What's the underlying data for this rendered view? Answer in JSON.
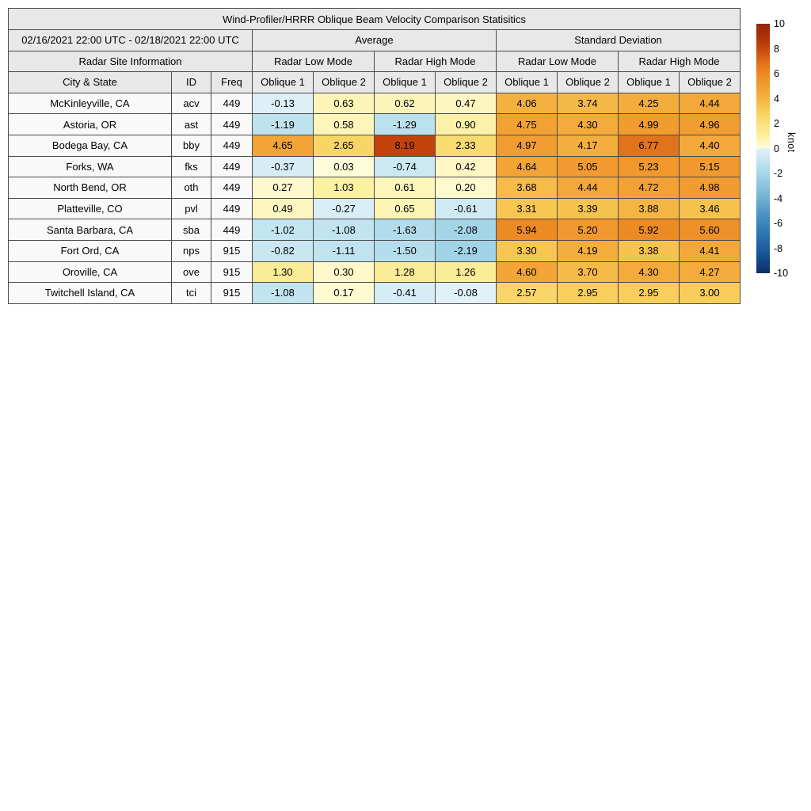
{
  "title": "Wind-Profiler/HRRR Oblique Beam Velocity Comparison Statisitics",
  "header": {
    "date_range": "02/16/2021 22:00 UTC - 02/18/2021 22:00 UTC",
    "average": "Average",
    "standard_deviation": "Standard Deviation",
    "radar_site_info": "Radar Site Information",
    "low_mode": "Radar Low Mode",
    "high_mode": "Radar High Mode",
    "city_state": "City & State",
    "id": "ID",
    "freq": "Freq",
    "oblique1": "Oblique 1",
    "oblique2": "Oblique 2"
  },
  "chart_data": {
    "type": "table",
    "title": "Wind-Profiler/HRRR Oblique Beam Velocity Comparison Statisitics",
    "value_columns": [
      "Average Radar Low Mode Oblique 1",
      "Average Radar Low Mode Oblique 2",
      "Average Radar High Mode Oblique 1",
      "Average Radar High Mode Oblique 2",
      "Std Dev Radar Low Mode Oblique 1",
      "Std Dev Radar Low Mode Oblique 2",
      "Std Dev Radar High Mode Oblique 1",
      "Std Dev Radar High Mode Oblique 2"
    ],
    "rows": [
      {
        "city": "McKinleyville, CA",
        "id": "acv",
        "freq": "449",
        "values": [
          "-0.13",
          "0.63",
          "0.62",
          "0.47",
          "4.06",
          "3.74",
          "4.25",
          "4.44"
        ]
      },
      {
        "city": "Astoria, OR",
        "id": "ast",
        "freq": "449",
        "values": [
          "-1.19",
          "0.58",
          "-1.29",
          "0.90",
          "4.75",
          "4.30",
          "4.99",
          "4.96"
        ]
      },
      {
        "city": "Bodega Bay, CA",
        "id": "bby",
        "freq": "449",
        "values": [
          "4.65",
          "2.65",
          "8.19",
          "2.33",
          "4.97",
          "4.17",
          "6.77",
          "4.40"
        ]
      },
      {
        "city": "Forks, WA",
        "id": "fks",
        "freq": "449",
        "values": [
          "-0.37",
          "0.03",
          "-0.74",
          "0.42",
          "4.64",
          "5.05",
          "5.23",
          "5.15"
        ]
      },
      {
        "city": "North Bend, OR",
        "id": "oth",
        "freq": "449",
        "values": [
          "0.27",
          "1.03",
          "0.61",
          "0.20",
          "3.68",
          "4.44",
          "4.72",
          "4.98"
        ]
      },
      {
        "city": "Platteville, CO",
        "id": "pvl",
        "freq": "449",
        "values": [
          "0.49",
          "-0.27",
          "0.65",
          "-0.61",
          "3.31",
          "3.39",
          "3.88",
          "3.46"
        ]
      },
      {
        "city": "Santa Barbara, CA",
        "id": "sba",
        "freq": "449",
        "values": [
          "-1.02",
          "-1.08",
          "-1.63",
          "-2.08",
          "5.94",
          "5.20",
          "5.92",
          "5.60"
        ]
      },
      {
        "city": "Fort Ord, CA",
        "id": "nps",
        "freq": "915",
        "values": [
          "-0.82",
          "-1.11",
          "-1.50",
          "-2.19",
          "3.30",
          "4.19",
          "3.38",
          "4.41"
        ]
      },
      {
        "city": "Oroville, CA",
        "id": "ove",
        "freq": "915",
        "values": [
          "1.30",
          "0.30",
          "1.28",
          "1.26",
          "4.60",
          "3.70",
          "4.30",
          "4.27"
        ]
      },
      {
        "city": "Twitchell Island, CA",
        "id": "tci",
        "freq": "915",
        "values": [
          "-1.08",
          "0.17",
          "-0.41",
          "-0.08",
          "2.57",
          "2.95",
          "2.95",
          "3.00"
        ]
      }
    ],
    "colorbar": {
      "label": "knot",
      "min": -10,
      "max": 10,
      "ticks": [
        "10",
        "8",
        "6",
        "4",
        "2",
        "0",
        "-2",
        "-4",
        "-6",
        "-8",
        "-10"
      ]
    }
  },
  "colors": {
    "header_bg": "#e8e8e8",
    "label_cell_bg": "#f9f9f9",
    "border": "#4a4a4a",
    "warm_scale": [
      "#fffcdc",
      "#fcf0a2",
      "#fae17d",
      "#f8ce59",
      "#f5b240",
      "#f19c31",
      "#ec8923",
      "#de6c18",
      "#c7460d",
      "#ac3008",
      "#8f2a06"
    ],
    "cool_scale": [
      "#e2f2f8",
      "#c4e5f0",
      "#a6d7e8",
      "#8ac4dd",
      "#72b0d2",
      "#5598c6",
      "#3d86bc",
      "#2c71af",
      "#1d5fa3",
      "#124785",
      "#0a3162"
    ]
  }
}
